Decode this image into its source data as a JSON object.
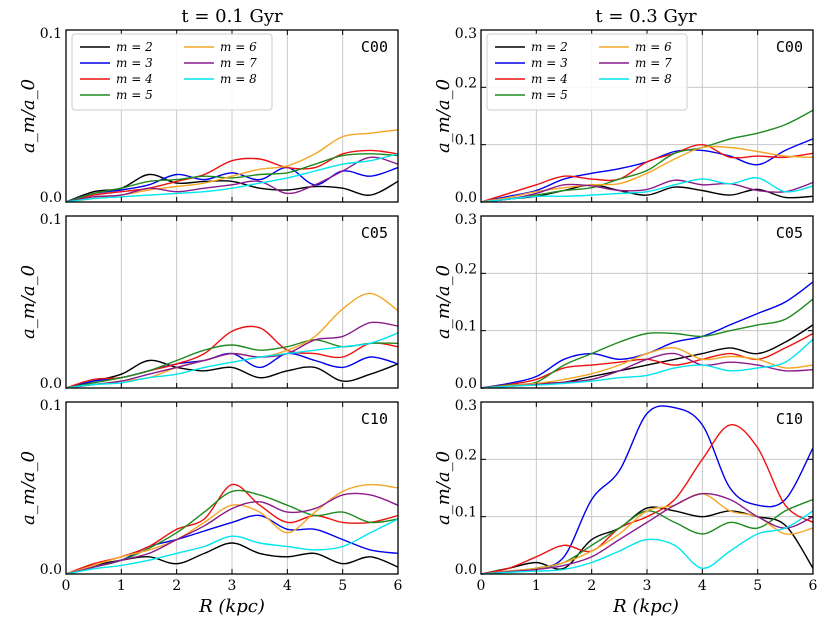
{
  "chart_data": {
    "type": "line",
    "xlabel": "R (kpc)",
    "ylabel": "a_m/a_0",
    "x_ticks": [
      "0",
      "1",
      "2",
      "3",
      "4",
      "5",
      "6"
    ],
    "grid": true,
    "columns": [
      {
        "title": "t = 0.1 Gyr",
        "ylim": [
          0,
          0.1
        ],
        "yticks": [
          "0.0",
          "0.1"
        ]
      },
      {
        "title": "t = 0.3 Gyr",
        "ylim": [
          0,
          0.3
        ],
        "yticks": [
          "0.0",
          "0.1",
          "0.2",
          "0.3"
        ]
      }
    ],
    "rows": [
      "C00",
      "C05",
      "C10"
    ],
    "legend": {
      "placement": "top-left of top panels",
      "entries": [
        "m = 2",
        "m = 3",
        "m = 4",
        "m = 5",
        "m = 6",
        "m = 7",
        "m = 8"
      ]
    },
    "series_colors": {
      "m = 2": "#000000",
      "m = 3": "#0000ee",
      "m = 4": "#ee1111",
      "m = 5": "#1f8a1f",
      "m = 6": "#f5a623",
      "m = 7": "#8b1a8b",
      "m = 8": "#00e5ee"
    },
    "panels": [
      {
        "label": "C00",
        "time": "t = 0.1 Gyr",
        "x": [
          0,
          0.5,
          1,
          1.5,
          2,
          2.5,
          3,
          3.5,
          4,
          4.5,
          5,
          5.5,
          6
        ],
        "series": [
          {
            "name": "m = 2",
            "values": [
              0.0,
              0.006,
              0.008,
              0.016,
              0.011,
              0.012,
              0.012,
              0.008,
              0.007,
              0.009,
              0.008,
              0.004,
              0.012
            ]
          },
          {
            "name": "m = 3",
            "values": [
              0.0,
              0.005,
              0.007,
              0.01,
              0.016,
              0.013,
              0.017,
              0.013,
              0.02,
              0.01,
              0.018,
              0.015,
              0.02
            ]
          },
          {
            "name": "m = 4",
            "values": [
              0.0,
              0.004,
              0.006,
              0.008,
              0.012,
              0.016,
              0.024,
              0.025,
              0.02,
              0.02,
              0.028,
              0.03,
              0.028
            ]
          },
          {
            "name": "m = 5",
            "values": [
              0.0,
              0.005,
              0.008,
              0.012,
              0.013,
              0.015,
              0.014,
              0.016,
              0.017,
              0.022,
              0.027,
              0.028,
              0.027
            ]
          },
          {
            "name": "m = 6",
            "values": [
              0.0,
              0.002,
              0.004,
              0.007,
              0.009,
              0.011,
              0.015,
              0.019,
              0.021,
              0.028,
              0.038,
              0.04,
              0.042
            ]
          },
          {
            "name": "m = 7",
            "values": [
              0.0,
              0.003,
              0.004,
              0.008,
              0.006,
              0.008,
              0.01,
              0.012,
              0.005,
              0.01,
              0.018,
              0.026,
              0.022
            ]
          },
          {
            "name": "m = 8",
            "values": [
              0.0,
              0.002,
              0.003,
              0.004,
              0.005,
              0.006,
              0.008,
              0.011,
              0.014,
              0.018,
              0.022,
              0.024,
              0.028
            ]
          }
        ]
      },
      {
        "label": "C00",
        "time": "t = 0.3 Gyr",
        "x": [
          0,
          0.5,
          1,
          1.5,
          2,
          2.5,
          3,
          3.5,
          4,
          4.5,
          5,
          5.5,
          6
        ],
        "series": [
          {
            "name": "m = 2",
            "values": [
              0.0,
              0.005,
              0.01,
              0.02,
              0.03,
              0.02,
              0.012,
              0.026,
              0.02,
              0.012,
              0.022,
              0.008,
              0.01
            ]
          },
          {
            "name": "m = 3",
            "values": [
              0.0,
              0.01,
              0.02,
              0.04,
              0.05,
              0.058,
              0.07,
              0.088,
              0.09,
              0.08,
              0.065,
              0.09,
              0.11
            ]
          },
          {
            "name": "m = 4",
            "values": [
              0.0,
              0.015,
              0.03,
              0.045,
              0.04,
              0.04,
              0.07,
              0.085,
              0.1,
              0.078,
              0.08,
              0.078,
              0.085
            ]
          },
          {
            "name": "m = 5",
            "values": [
              0.0,
              0.005,
              0.012,
              0.02,
              0.025,
              0.04,
              0.055,
              0.085,
              0.095,
              0.11,
              0.12,
              0.135,
              0.16
            ]
          },
          {
            "name": "m = 6",
            "values": [
              0.0,
              0.008,
              0.018,
              0.025,
              0.03,
              0.032,
              0.05,
              0.075,
              0.095,
              0.095,
              0.088,
              0.08,
              0.078
            ]
          },
          {
            "name": "m = 7",
            "values": [
              0.0,
              0.005,
              0.015,
              0.03,
              0.028,
              0.02,
              0.022,
              0.038,
              0.03,
              0.032,
              0.02,
              0.018,
              0.034
            ]
          },
          {
            "name": "m = 8",
            "values": [
              0.0,
              0.005,
              0.01,
              0.01,
              0.012,
              0.015,
              0.018,
              0.03,
              0.04,
              0.032,
              0.042,
              0.018,
              0.028
            ]
          }
        ]
      },
      {
        "label": "C05",
        "time": "t = 0.1 Gyr",
        "x": [
          0,
          0.5,
          1,
          1.5,
          2,
          2.5,
          3,
          3.5,
          4,
          4.5,
          5,
          5.5,
          6
        ],
        "series": [
          {
            "name": "m = 2",
            "values": [
              0.0,
              0.004,
              0.008,
              0.016,
              0.012,
              0.01,
              0.012,
              0.006,
              0.01,
              0.012,
              0.004,
              0.008,
              0.014
            ]
          },
          {
            "name": "m = 3",
            "values": [
              0.0,
              0.004,
              0.006,
              0.01,
              0.014,
              0.016,
              0.02,
              0.012,
              0.02,
              0.016,
              0.012,
              0.018,
              0.014
            ]
          },
          {
            "name": "m = 4",
            "values": [
              0.0,
              0.005,
              0.006,
              0.01,
              0.014,
              0.02,
              0.033,
              0.035,
              0.022,
              0.02,
              0.018,
              0.026,
              0.024
            ]
          },
          {
            "name": "m = 5",
            "values": [
              0.0,
              0.003,
              0.006,
              0.01,
              0.016,
              0.022,
              0.025,
              0.022,
              0.024,
              0.028,
              0.024,
              0.026,
              0.026
            ]
          },
          {
            "name": "m = 6",
            "values": [
              0.0,
              0.002,
              0.004,
              0.006,
              0.012,
              0.016,
              0.02,
              0.018,
              0.022,
              0.03,
              0.046,
              0.055,
              0.045
            ]
          },
          {
            "name": "m = 7",
            "values": [
              0.0,
              0.002,
              0.004,
              0.008,
              0.012,
              0.016,
              0.02,
              0.018,
              0.02,
              0.028,
              0.03,
              0.038,
              0.036
            ]
          },
          {
            "name": "m = 8",
            "values": [
              0.0,
              0.002,
              0.003,
              0.006,
              0.008,
              0.012,
              0.015,
              0.018,
              0.02,
              0.022,
              0.024,
              0.026,
              0.032
            ]
          }
        ]
      },
      {
        "label": "C05",
        "time": "t = 0.3 Gyr",
        "x": [
          0,
          0.5,
          1,
          1.5,
          2,
          2.5,
          3,
          3.5,
          4,
          4.5,
          5,
          5.5,
          6
        ],
        "series": [
          {
            "name": "m = 2",
            "values": [
              0.0,
              0.004,
              0.008,
              0.01,
              0.02,
              0.03,
              0.04,
              0.05,
              0.06,
              0.07,
              0.06,
              0.08,
              0.11
            ]
          },
          {
            "name": "m = 3",
            "values": [
              0.0,
              0.008,
              0.02,
              0.05,
              0.06,
              0.05,
              0.06,
              0.08,
              0.09,
              0.11,
              0.13,
              0.15,
              0.185
            ]
          },
          {
            "name": "m = 4",
            "values": [
              0.0,
              0.006,
              0.015,
              0.035,
              0.04,
              0.045,
              0.05,
              0.04,
              0.05,
              0.06,
              0.05,
              0.07,
              0.095
            ]
          },
          {
            "name": "m = 5",
            "values": [
              0.0,
              0.005,
              0.01,
              0.04,
              0.06,
              0.08,
              0.095,
              0.095,
              0.09,
              0.1,
              0.11,
              0.12,
              0.155
            ]
          },
          {
            "name": "m = 6",
            "values": [
              0.0,
              0.004,
              0.008,
              0.015,
              0.025,
              0.04,
              0.06,
              0.07,
              0.05,
              0.055,
              0.05,
              0.035,
              0.04
            ]
          },
          {
            "name": "m = 7",
            "values": [
              0.0,
              0.003,
              0.006,
              0.01,
              0.015,
              0.03,
              0.05,
              0.06,
              0.04,
              0.045,
              0.04,
              0.03,
              0.032
            ]
          },
          {
            "name": "m = 8",
            "values": [
              0.0,
              0.003,
              0.005,
              0.008,
              0.012,
              0.018,
              0.022,
              0.035,
              0.04,
              0.03,
              0.035,
              0.045,
              0.085
            ]
          }
        ]
      },
      {
        "label": "C10",
        "time": "t = 0.1 Gyr",
        "x": [
          0,
          0.5,
          1,
          1.5,
          2,
          2.5,
          3,
          3.5,
          4,
          4.5,
          5,
          5.5,
          6
        ],
        "series": [
          {
            "name": "m = 2",
            "values": [
              0.0,
              0.005,
              0.008,
              0.01,
              0.006,
              0.012,
              0.018,
              0.012,
              0.01,
              0.012,
              0.006,
              0.01,
              0.004
            ]
          },
          {
            "name": "m = 3",
            "values": [
              0.0,
              0.004,
              0.008,
              0.016,
              0.02,
              0.025,
              0.03,
              0.034,
              0.026,
              0.026,
              0.02,
              0.014,
              0.012
            ]
          },
          {
            "name": "m = 4",
            "values": [
              0.0,
              0.006,
              0.01,
              0.016,
              0.026,
              0.032,
              0.052,
              0.04,
              0.03,
              0.034,
              0.03,
              0.03,
              0.034
            ]
          },
          {
            "name": "m = 5",
            "values": [
              0.0,
              0.004,
              0.008,
              0.015,
              0.024,
              0.036,
              0.048,
              0.046,
              0.04,
              0.034,
              0.036,
              0.03,
              0.032
            ]
          },
          {
            "name": "m = 6",
            "values": [
              0.0,
              0.005,
              0.01,
              0.014,
              0.02,
              0.03,
              0.04,
              0.036,
              0.024,
              0.036,
              0.048,
              0.052,
              0.05
            ]
          },
          {
            "name": "m = 7",
            "values": [
              0.0,
              0.004,
              0.008,
              0.012,
              0.02,
              0.028,
              0.038,
              0.042,
              0.036,
              0.038,
              0.046,
              0.046,
              0.04
            ]
          },
          {
            "name": "m = 8",
            "values": [
              0.0,
              0.003,
              0.005,
              0.008,
              0.012,
              0.016,
              0.022,
              0.018,
              0.016,
              0.014,
              0.016,
              0.024,
              0.032
            ]
          }
        ]
      },
      {
        "label": "C10",
        "time": "t = 0.3 Gyr",
        "x": [
          0,
          0.5,
          1,
          1.5,
          2,
          2.5,
          3,
          3.5,
          4,
          4.5,
          5,
          5.5,
          6
        ],
        "series": [
          {
            "name": "m = 2",
            "values": [
              0.0,
              0.01,
              0.02,
              0.01,
              0.06,
              0.08,
              0.115,
              0.11,
              0.1,
              0.11,
              0.1,
              0.085,
              0.01
            ]
          },
          {
            "name": "m = 3",
            "values": [
              0.0,
              0.005,
              0.01,
              0.03,
              0.13,
              0.18,
              0.28,
              0.29,
              0.26,
              0.15,
              0.12,
              0.13,
              0.22
            ]
          },
          {
            "name": "m = 4",
            "values": [
              0.0,
              0.01,
              0.03,
              0.05,
              0.04,
              0.08,
              0.1,
              0.13,
              0.2,
              0.26,
              0.22,
              0.12,
              0.09
            ]
          },
          {
            "name": "m = 5",
            "values": [
              0.0,
              0.005,
              0.01,
              0.02,
              0.05,
              0.08,
              0.11,
              0.09,
              0.07,
              0.09,
              0.08,
              0.11,
              0.13
            ]
          },
          {
            "name": "m = 6",
            "values": [
              0.0,
              0.005,
              0.01,
              0.02,
              0.04,
              0.07,
              0.11,
              0.12,
              0.14,
              0.11,
              0.1,
              0.07,
              0.08
            ]
          },
          {
            "name": "m = 7",
            "values": [
              0.0,
              0.004,
              0.008,
              0.015,
              0.03,
              0.06,
              0.09,
              0.12,
              0.14,
              0.13,
              0.1,
              0.08,
              0.1
            ]
          },
          {
            "name": "m = 8",
            "values": [
              0.0,
              0.003,
              0.005,
              0.008,
              0.02,
              0.04,
              0.06,
              0.05,
              0.01,
              0.04,
              0.07,
              0.08,
              0.11
            ]
          }
        ]
      }
    ]
  }
}
